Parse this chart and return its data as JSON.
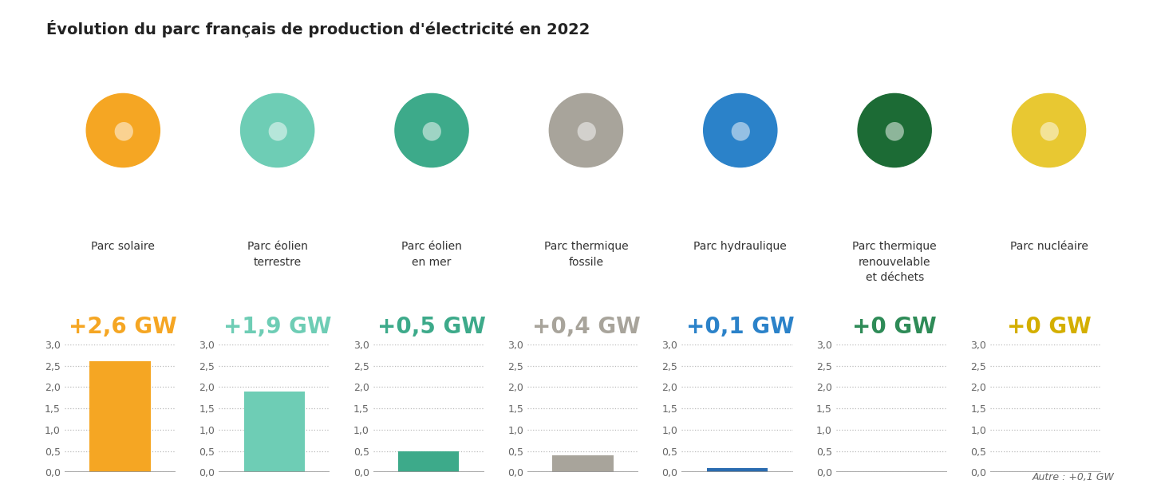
{
  "title": "Évolution du parc français de production d'électricité en 2022",
  "subtitle_note": "Autre : +0,1 GW",
  "categories": [
    "Parc solaire",
    "Parc éolien\nterrestre",
    "Parc éolien\nen mer",
    "Parc thermique\nfossile",
    "Parc hydraulique",
    "Parc thermique\nrenouvelable\net déchets",
    "Parc nucléaire"
  ],
  "values": [
    2.6,
    1.9,
    0.5,
    0.4,
    0.1,
    0.0,
    0.0
  ],
  "value_labels": [
    "+2,6 GW",
    "+1,9 GW",
    "+0,5 GW",
    "+0,4 GW",
    "+0,1 GW",
    "+0 GW",
    "+0 GW"
  ],
  "bar_colors": [
    "#F5A623",
    "#6ECDB5",
    "#3DAA8A",
    "#A8A49B",
    "#2B6CB0",
    "#1C6B35",
    "#E8C832"
  ],
  "value_colors": [
    "#F5A623",
    "#6ECDB5",
    "#3DAA8A",
    "#A8A49B",
    "#2B82C9",
    "#2E8B57",
    "#D4AF00"
  ],
  "icon_colors": [
    "#F5A623",
    "#6ECDB5",
    "#3DAA8A",
    "#A8A49B",
    "#2B82C9",
    "#1C6B35",
    "#E8C832"
  ],
  "ylim": [
    0.0,
    3.0
  ],
  "yticks": [
    0.0,
    0.5,
    1.0,
    1.5,
    2.0,
    2.5,
    3.0
  ],
  "background_color": "#FFFFFF",
  "title_fontsize": 14,
  "value_label_fontsize": 20,
  "category_fontsize": 10,
  "ytick_fontsize": 9,
  "fig_width": 14.4,
  "fig_height": 6.17,
  "n_cols": 7
}
